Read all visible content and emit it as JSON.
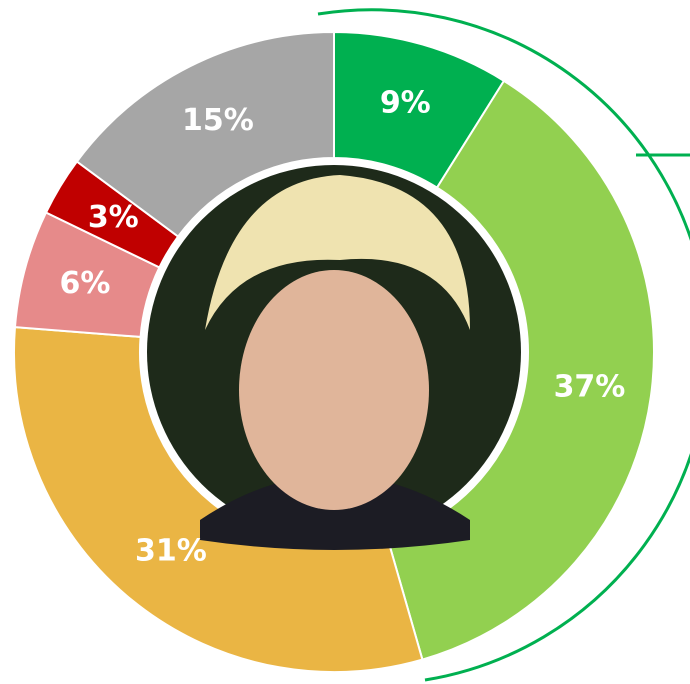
{
  "chart_data": {
    "type": "donut",
    "values": [
      9,
      37,
      31,
      6,
      3,
      15
    ],
    "value_labels": [
      "9%",
      "37%",
      "31%",
      "6%",
      "3%",
      "15%"
    ],
    "colors": [
      "#00b050",
      "#92d050",
      "#eab544",
      "#e68a8a",
      "#c00000",
      "#a6a6a6"
    ]
  }
}
